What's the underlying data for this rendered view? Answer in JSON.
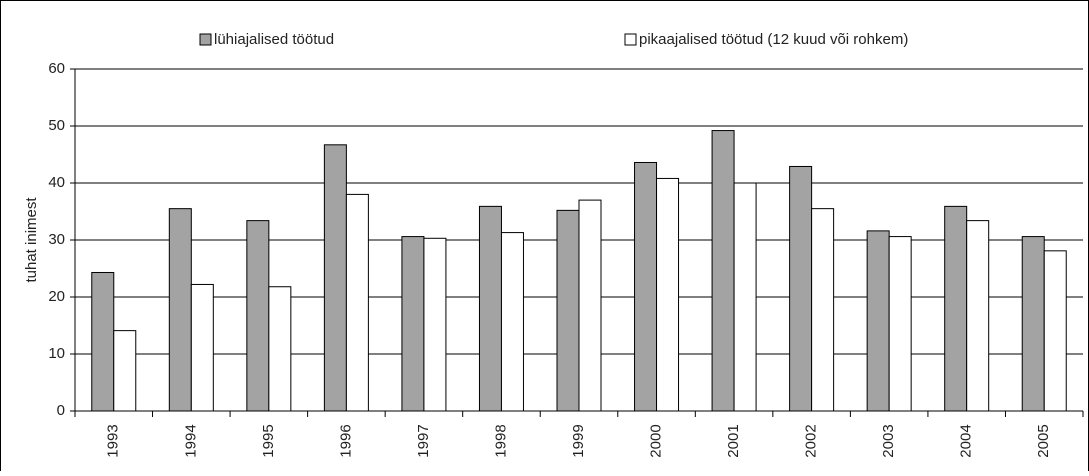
{
  "chart_data": {
    "type": "bar",
    "ylabel": "tuhat inimest",
    "categories": [
      "1993",
      "1994",
      "1995",
      "1996",
      "1997",
      "1998",
      "1999",
      "2000",
      "2001",
      "2002",
      "2003",
      "2004",
      "2005"
    ],
    "series": [
      {
        "name": "lühiajalised töötud",
        "color": "#a3a3a3",
        "values": [
          24.3,
          35.5,
          33.4,
          46.7,
          30.6,
          35.9,
          35.2,
          43.6,
          49.2,
          42.9,
          31.6,
          35.9,
          30.6
        ]
      },
      {
        "name": "pikaajalised töötud (12 kuud või rohkem)",
        "color": "#ffffff",
        "values": [
          14.1,
          22.2,
          21.8,
          38.0,
          30.3,
          31.3,
          37.0,
          40.8,
          40.0,
          35.5,
          30.6,
          33.4,
          28.1
        ]
      }
    ],
    "ylim": [
      0,
      60
    ],
    "yticks": [
      0,
      10,
      20,
      30,
      40,
      50,
      60
    ],
    "grid": true
  }
}
